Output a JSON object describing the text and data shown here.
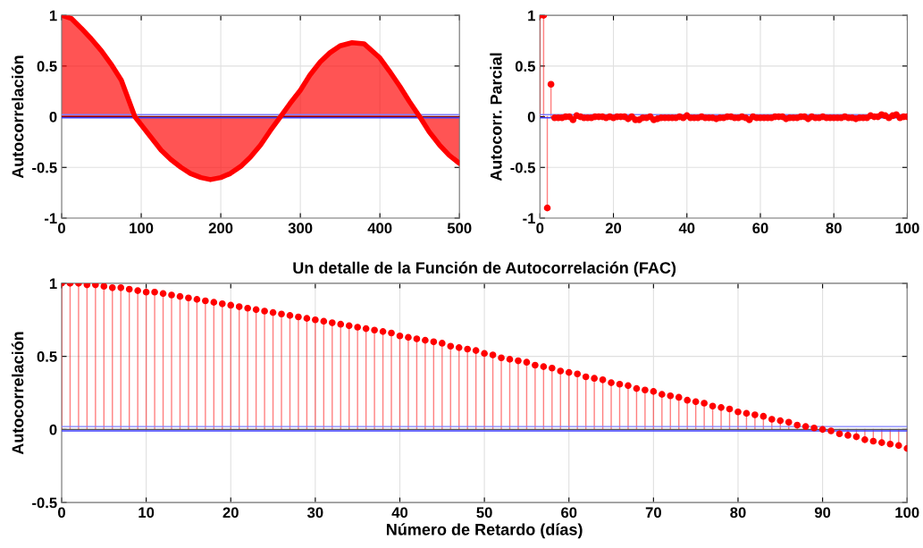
{
  "chart_data": [
    {
      "type": "area",
      "ylabel": "Autocorrelación",
      "color": "#ff0000",
      "x": [
        0,
        12,
        25,
        37,
        50,
        62,
        75,
        92,
        110,
        125,
        137,
        150,
        162,
        175,
        187,
        200,
        212,
        225,
        237,
        250,
        262,
        275,
        287,
        300,
        312,
        325,
        337,
        350,
        365,
        380,
        400,
        412,
        425,
        437,
        450,
        462,
        475,
        487,
        500
      ],
      "values": [
        1.0,
        0.97,
        0.87,
        0.77,
        0.65,
        0.52,
        0.36,
        0.0,
        -0.18,
        -0.33,
        -0.42,
        -0.5,
        -0.56,
        -0.6,
        -0.62,
        -0.6,
        -0.56,
        -0.49,
        -0.4,
        -0.28,
        -0.14,
        0.0,
        0.13,
        0.26,
        0.41,
        0.54,
        0.63,
        0.7,
        0.73,
        0.72,
        0.58,
        0.45,
        0.3,
        0.15,
        0.0,
        -0.15,
        -0.28,
        -0.38,
        -0.46
      ],
      "xlim": [
        0,
        500
      ],
      "ylim": [
        -1,
        1
      ],
      "xticks": [
        0,
        100,
        200,
        300,
        400,
        500
      ],
      "yticks": [
        -1,
        -0.5,
        0,
        0.5,
        1
      ],
      "grid": true,
      "marker": "none",
      "ref_lines": [
        {
          "axis": "y",
          "value": 0,
          "color": "#7f0000"
        },
        {
          "axis": "y",
          "value": 0.02,
          "color": "#8080ff"
        },
        {
          "axis": "y",
          "value": -0.01,
          "color": "#4040ff"
        }
      ]
    },
    {
      "type": "lollipop",
      "ylabel": "Autocorr. Parcial",
      "color": "#ff0000",
      "marker": "circle",
      "x": [
        0,
        1,
        2,
        3,
        4,
        5,
        6,
        7,
        8,
        9,
        10,
        11,
        12,
        13,
        14,
        15,
        16,
        17,
        18,
        19,
        20,
        21,
        22,
        23,
        24,
        25,
        26,
        27,
        28,
        29,
        30,
        31,
        32,
        33,
        34,
        35,
        36,
        37,
        38,
        39,
        40,
        41,
        42,
        43,
        44,
        45,
        46,
        47,
        48,
        49,
        50,
        51,
        52,
        53,
        54,
        55,
        56,
        57,
        58,
        59,
        60,
        61,
        62,
        63,
        64,
        65,
        66,
        67,
        68,
        69,
        70,
        71,
        72,
        73,
        74,
        75,
        76,
        77,
        78,
        79,
        80,
        81,
        82,
        83,
        84,
        85,
        86,
        87,
        88,
        89,
        90,
        91,
        92,
        93,
        94,
        95,
        96,
        97,
        98,
        99,
        100
      ],
      "values": [
        1,
        1,
        -0.9,
        0.32,
        -0.01,
        -0.01,
        -0.01,
        0,
        0,
        -0.03,
        0.01,
        0,
        -0.01,
        -0.01,
        -0.01,
        0,
        0,
        0,
        -0.01,
        0,
        -0.01,
        0,
        0,
        0,
        -0.02,
        0,
        -0.03,
        -0.03,
        -0.01,
        -0.01,
        0,
        -0.03,
        -0.02,
        -0.01,
        -0.01,
        -0.01,
        -0.01,
        -0.01,
        0,
        -0.01,
        0.01,
        -0.01,
        -0.01,
        -0.01,
        0,
        -0.01,
        -0.01,
        -0.01,
        -0.02,
        -0.01,
        -0.01,
        0,
        0,
        -0.01,
        -0.01,
        0,
        -0.01,
        -0.03,
        0,
        -0.01,
        -0.01,
        -0.01,
        -0.01,
        -0.01,
        0,
        0,
        0,
        -0.02,
        -0.01,
        -0.01,
        -0.01,
        0,
        0,
        -0.02,
        0,
        -0.01,
        -0.01,
        0,
        -0.01,
        -0.01,
        -0.01,
        -0.01,
        -0.01,
        0,
        -0.01,
        -0.01,
        -0.02,
        -0.01,
        -0.01,
        -0.01,
        0.01,
        0,
        0,
        0.02,
        0.01,
        -0.01,
        0.01,
        0.02,
        -0.01,
        0,
        0
      ],
      "xlim": [
        0,
        100
      ],
      "ylim": [
        -1,
        1
      ],
      "xticks": [
        0,
        20,
        40,
        60,
        80,
        100
      ],
      "yticks": [
        -1,
        -0.5,
        0,
        0.5,
        1
      ],
      "grid": true,
      "ref_lines": [
        {
          "axis": "y",
          "value": 0.02,
          "color": "#8080ff"
        },
        {
          "axis": "y",
          "value": -0.01,
          "color": "#4040ff"
        }
      ]
    },
    {
      "type": "lollipop",
      "title": "Un detalle de la Función de Autocorrelación (FAC)",
      "xlabel": "Número de Retardo (días)",
      "ylabel": "Autocorrelación",
      "color": "#ff0000",
      "marker": "circle",
      "x": [
        0,
        1,
        2,
        3,
        4,
        5,
        6,
        7,
        8,
        9,
        10,
        11,
        12,
        13,
        14,
        15,
        16,
        17,
        18,
        19,
        20,
        21,
        22,
        23,
        24,
        25,
        26,
        27,
        28,
        29,
        30,
        31,
        32,
        33,
        34,
        35,
        36,
        37,
        38,
        39,
        40,
        41,
        42,
        43,
        44,
        45,
        46,
        47,
        48,
        49,
        50,
        51,
        52,
        53,
        54,
        55,
        56,
        57,
        58,
        59,
        60,
        61,
        62,
        63,
        64,
        65,
        66,
        67,
        68,
        69,
        70,
        71,
        72,
        73,
        74,
        75,
        76,
        77,
        78,
        79,
        80,
        81,
        82,
        83,
        84,
        85,
        86,
        87,
        88,
        89,
        90,
        91,
        92,
        93,
        94,
        95,
        96,
        97,
        98,
        99,
        100
      ],
      "values": [
        1.0,
        1.0,
        1.0,
        0.99,
        0.99,
        0.98,
        0.97,
        0.97,
        0.96,
        0.95,
        0.94,
        0.94,
        0.93,
        0.92,
        0.91,
        0.9,
        0.89,
        0.88,
        0.87,
        0.86,
        0.85,
        0.84,
        0.83,
        0.82,
        0.81,
        0.8,
        0.79,
        0.78,
        0.77,
        0.76,
        0.75,
        0.74,
        0.73,
        0.72,
        0.71,
        0.7,
        0.69,
        0.68,
        0.67,
        0.66,
        0.64,
        0.63,
        0.62,
        0.61,
        0.6,
        0.59,
        0.57,
        0.56,
        0.55,
        0.54,
        0.52,
        0.51,
        0.49,
        0.48,
        0.47,
        0.46,
        0.44,
        0.43,
        0.42,
        0.4,
        0.39,
        0.38,
        0.36,
        0.35,
        0.34,
        0.32,
        0.31,
        0.3,
        0.28,
        0.27,
        0.26,
        0.24,
        0.23,
        0.22,
        0.2,
        0.19,
        0.18,
        0.16,
        0.15,
        0.14,
        0.12,
        0.11,
        0.1,
        0.09,
        0.07,
        0.06,
        0.05,
        0.03,
        0.02,
        0.01,
        0.0,
        -0.01,
        -0.03,
        -0.04,
        -0.05,
        -0.07,
        -0.08,
        -0.09,
        -0.1,
        -0.11,
        -0.13
      ],
      "xlim": [
        0,
        100
      ],
      "ylim": [
        -0.5,
        1
      ],
      "xticks": [
        0,
        10,
        20,
        30,
        40,
        50,
        60,
        70,
        80,
        90,
        100
      ],
      "yticks": [
        -0.5,
        0,
        0.5,
        1
      ],
      "grid": true,
      "ref_lines": [
        {
          "axis": "y",
          "value": 0,
          "color": "#555555"
        },
        {
          "axis": "y",
          "value": 0.02,
          "color": "#8080ff"
        },
        {
          "axis": "y",
          "value": -0.01,
          "color": "#4040ff"
        }
      ]
    }
  ]
}
